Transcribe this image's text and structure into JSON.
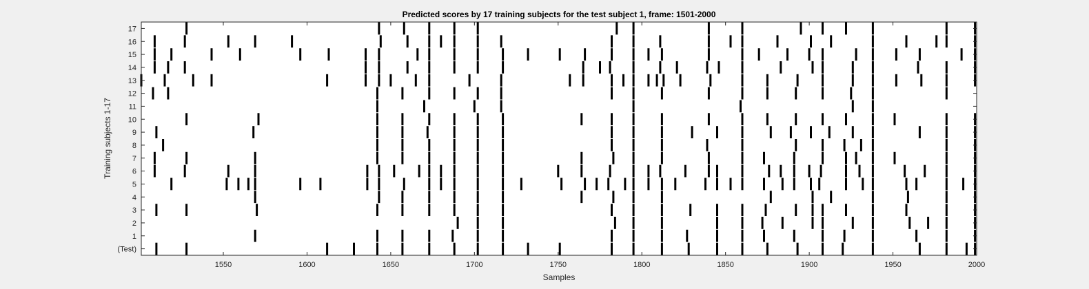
{
  "chart_data": {
    "type": "event-raster",
    "title": "Predicted scores by 17 training subjects for the test subject 1, frame: 1501-2000",
    "xlabel": "Samples",
    "ylabel": "Training subjects 1-17",
    "xlim": [
      1501,
      2000
    ],
    "xticks": [
      1550,
      1600,
      1650,
      1700,
      1750,
      1800,
      1850,
      1900,
      1950,
      2000
    ],
    "yticks": [
      "(Test)",
      "1",
      "2",
      "3",
      "4",
      "5",
      "6",
      "7",
      "8",
      "9",
      "10",
      "11",
      "12",
      "13",
      "14",
      "15",
      "16",
      "17"
    ],
    "grid": false,
    "colors": {
      "background": "#f0f0f0",
      "axes": "#ffffff",
      "marks": "#000000",
      "frame": "#262626"
    },
    "rows": [
      {
        "label": "(Test)",
        "events": [
          1510,
          1528,
          1612,
          1628,
          1642,
          1657,
          1673,
          1688,
          1702,
          1717,
          1732,
          1751,
          1782,
          1795,
          1812,
          1828,
          1845,
          1860,
          1875,
          1893,
          1908,
          1920,
          1938,
          1966,
          1982,
          1994,
          1999
        ]
      },
      {
        "label": "1",
        "events": [
          1569,
          1642,
          1657,
          1673,
          1687,
          1702,
          1717,
          1782,
          1795,
          1812,
          1827,
          1845,
          1860,
          1873,
          1891,
          1908,
          1921,
          1938,
          1964,
          1982,
          1999
        ]
      },
      {
        "label": "2",
        "events": [
          1690,
          1702,
          1717,
          1784,
          1795,
          1812,
          1845,
          1860,
          1872,
          1884,
          1902,
          1908,
          1926,
          1938,
          1960,
          1971,
          1982,
          1999
        ]
      },
      {
        "label": "3",
        "events": [
          1510,
          1528,
          1570,
          1642,
          1657,
          1673,
          1688,
          1702,
          1717,
          1782,
          1795,
          1812,
          1829,
          1845,
          1860,
          1874,
          1892,
          1902,
          1908,
          1922,
          1938,
          1958,
          1982,
          1999
        ]
      },
      {
        "label": "4",
        "events": [
          1569,
          1643,
          1657,
          1673,
          1688,
          1702,
          1717,
          1764,
          1783,
          1795,
          1812,
          1877,
          1902,
          1913,
          1938,
          1959,
          1982,
          1999
        ]
      },
      {
        "label": "5",
        "events": [
          1519,
          1552,
          1559,
          1565,
          1569,
          1596,
          1608,
          1636,
          1643,
          1658,
          1673,
          1680,
          1688,
          1702,
          1717,
          1728,
          1752,
          1766,
          1773,
          1780,
          1790,
          1795,
          1804,
          1812,
          1820,
          1838,
          1845,
          1853,
          1860,
          1873,
          1884,
          1891,
          1901,
          1906,
          1922,
          1932,
          1938,
          1958,
          1964,
          1982,
          1992,
          1999
        ]
      },
      {
        "label": "6",
        "events": [
          1509,
          1527,
          1553,
          1569,
          1636,
          1643,
          1652,
          1667,
          1673,
          1680,
          1688,
          1702,
          1717,
          1750,
          1764,
          1781,
          1795,
          1804,
          1811,
          1826,
          1840,
          1845,
          1860,
          1876,
          1883,
          1891,
          1900,
          1907,
          1922,
          1930,
          1938,
          1957,
          1969,
          1982,
          1999
        ]
      },
      {
        "label": "7",
        "events": [
          1509,
          1528,
          1569,
          1642,
          1657,
          1673,
          1688,
          1702,
          1717,
          1764,
          1783,
          1795,
          1812,
          1840,
          1860,
          1873,
          1891,
          1908,
          1922,
          1928,
          1938,
          1951,
          1982,
          1999
        ]
      },
      {
        "label": "8",
        "events": [
          1514,
          1642,
          1657,
          1673,
          1688,
          1702,
          1717,
          1782,
          1795,
          1812,
          1839,
          1860,
          1892,
          1908,
          1921,
          1931,
          1938,
          1982,
          1999
        ]
      },
      {
        "label": "9",
        "events": [
          1510,
          1568,
          1642,
          1657,
          1672,
          1688,
          1702,
          1717,
          1782,
          1795,
          1812,
          1830,
          1845,
          1860,
          1877,
          1889,
          1901,
          1912,
          1926,
          1938,
          1966,
          1982,
          1999
        ]
      },
      {
        "label": "10",
        "events": [
          1528,
          1571,
          1642,
          1657,
          1673,
          1688,
          1702,
          1717,
          1764,
          1782,
          1795,
          1812,
          1840,
          1860,
          1875,
          1892,
          1908,
          1922,
          1938,
          1951,
          1982,
          1999
        ]
      },
      {
        "label": "11",
        "events": [
          1642,
          1670,
          1700,
          1716,
          1795,
          1859,
          1926,
          1938
        ]
      },
      {
        "label": "12",
        "events": [
          1508,
          1517,
          1642,
          1657,
          1673,
          1688,
          1702,
          1716,
          1782,
          1795,
          1812,
          1840,
          1860,
          1875,
          1892,
          1908,
          1925,
          1938,
          1982
        ]
      },
      {
        "label": "13",
        "events": [
          1501,
          1515,
          1532,
          1543,
          1612,
          1635,
          1643,
          1650,
          1665,
          1673,
          1697,
          1716,
          1757,
          1765,
          1782,
          1789,
          1795,
          1804,
          1809,
          1813,
          1823,
          1841,
          1860,
          1875,
          1893,
          1908,
          1926,
          1938,
          1952,
          1967,
          1982,
          1999
        ]
      },
      {
        "label": "14",
        "events": [
          1509,
          1517,
          1527,
          1635,
          1643,
          1660,
          1673,
          1688,
          1702,
          1717,
          1765,
          1775,
          1781,
          1795,
          1811,
          1821,
          1839,
          1846,
          1860,
          1883,
          1902,
          1908,
          1926,
          1938,
          1965,
          1982,
          1999
        ]
      },
      {
        "label": "15",
        "events": [
          1509,
          1519,
          1543,
          1560,
          1596,
          1613,
          1635,
          1643,
          1666,
          1673,
          1688,
          1702,
          1717,
          1732,
          1751,
          1766,
          1782,
          1795,
          1804,
          1812,
          1840,
          1860,
          1870,
          1887,
          1900,
          1908,
          1928,
          1938,
          1952,
          1966,
          1991,
          1999
        ]
      },
      {
        "label": "16",
        "events": [
          1509,
          1527,
          1553,
          1569,
          1591,
          1644,
          1660,
          1673,
          1680,
          1688,
          1702,
          1716,
          1782,
          1795,
          1811,
          1840,
          1853,
          1860,
          1881,
          1901,
          1913,
          1938,
          1958,
          1976,
          1982,
          1999
        ]
      },
      {
        "label": "17",
        "events": [
          1528,
          1643,
          1658,
          1673,
          1688,
          1702,
          1785,
          1795,
          1840,
          1860,
          1895,
          1908,
          1922,
          1938,
          1982,
          1999
        ]
      }
    ]
  }
}
